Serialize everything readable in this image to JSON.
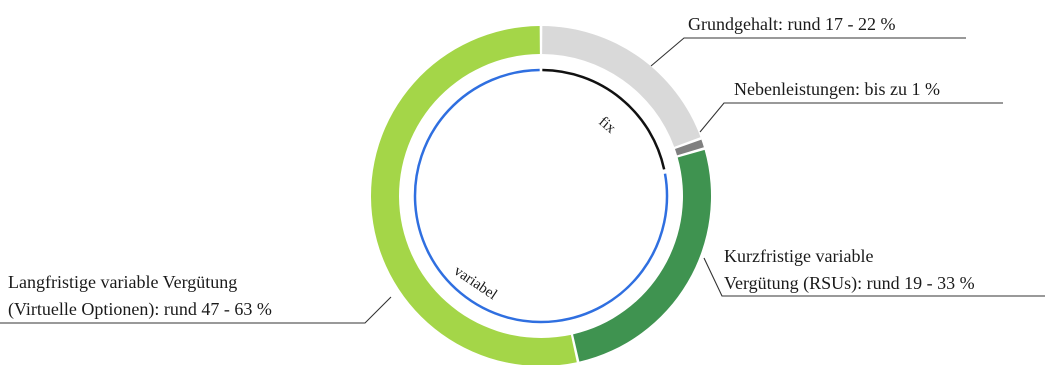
{
  "chart_data": {
    "type": "pie",
    "variant": "donut",
    "title": "",
    "slices": [
      {
        "label": "Grundgehalt: rund 17 - 22 %",
        "value": 19.5,
        "color": "#d9d9d9"
      },
      {
        "label": "Nebenleistungen: bis zu 1 %",
        "value": 1,
        "color": "#808080"
      },
      {
        "label_lines": [
          "Kurzfristige variable",
          "Vergütung (RSUs): rund 19 - 33 %"
        ],
        "value": 26,
        "color": "#3f9350"
      },
      {
        "label_lines": [
          "Langfristige variable Vergütung",
          "(Virtuelle Optionen): rund 47 - 63 %"
        ],
        "value": 53.5,
        "color": "#a4d648"
      }
    ],
    "inner_arcs": [
      {
        "label": "fix",
        "color": "#111111",
        "covers": "Grundgehalt + Nebenleistungen"
      },
      {
        "label": "variabel",
        "color": "#2f6fe0",
        "covers": "Kurzfristige + Langfristige variable Vergütung"
      }
    ]
  }
}
